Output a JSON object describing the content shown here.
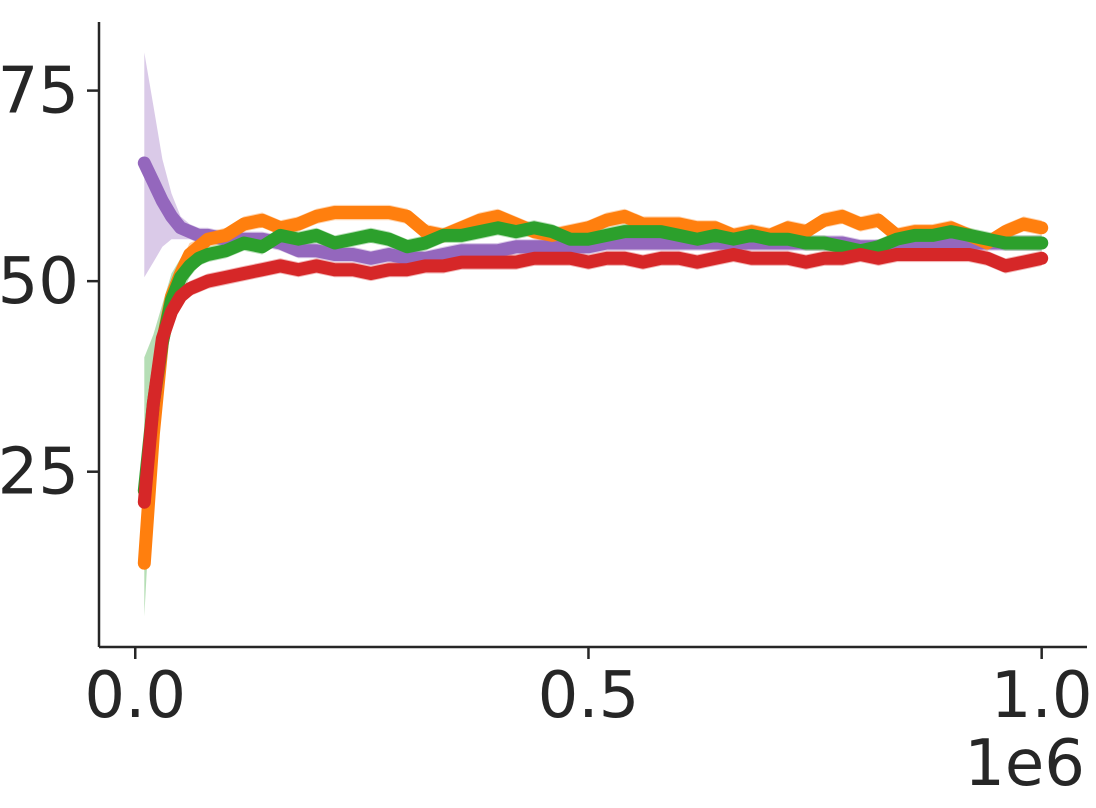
{
  "chart_data": {
    "type": "line",
    "title": "",
    "xlabel": "",
    "ylabel": "",
    "x_offset_label": "1e6",
    "xlim": [
      -0.04,
      1.05
    ],
    "ylim": [
      2,
      84
    ],
    "xticks": [
      0.0,
      0.5,
      1.0
    ],
    "xtick_labels": [
      "0.0",
      "0.5",
      "1.0"
    ],
    "yticks": [
      25,
      50,
      75
    ],
    "ytick_labels": [
      "25",
      "50",
      "75"
    ],
    "grid": false,
    "legend": "none",
    "x": [
      0.01,
      0.02,
      0.03,
      0.04,
      0.05,
      0.06,
      0.07,
      0.08,
      0.1,
      0.12,
      0.14,
      0.16,
      0.18,
      0.2,
      0.22,
      0.24,
      0.26,
      0.28,
      0.3,
      0.32,
      0.34,
      0.36,
      0.38,
      0.4,
      0.42,
      0.44,
      0.46,
      0.48,
      0.5,
      0.52,
      0.54,
      0.56,
      0.58,
      0.6,
      0.62,
      0.64,
      0.66,
      0.68,
      0.7,
      0.72,
      0.74,
      0.76,
      0.78,
      0.8,
      0.82,
      0.84,
      0.86,
      0.88,
      0.9,
      0.92,
      0.94,
      0.96,
      0.98,
      1.0
    ],
    "series": [
      {
        "color": "#9467bd",
        "values": [
          65.5,
          63,
          60.5,
          58.5,
          57,
          56.5,
          56,
          56,
          55.5,
          55.5,
          55.5,
          55,
          54,
          54,
          53.5,
          53.5,
          53,
          53.5,
          53,
          53,
          53.5,
          54,
          54,
          54,
          54.5,
          54.5,
          54.5,
          54.5,
          54.5,
          55,
          55,
          55,
          55,
          55,
          55,
          55,
          55,
          55,
          55,
          55,
          55,
          55,
          55,
          54.5,
          54.5,
          55,
          55,
          55,
          55,
          55,
          55,
          55,
          55,
          55
        ],
        "lower": [
          50.5,
          52.5,
          54.5,
          55.5,
          55.5,
          55.5,
          55,
          55,
          54.5,
          54.5,
          54.5,
          54,
          53,
          53,
          52.5,
          52.5,
          52,
          52.5,
          52,
          52,
          52.5,
          53,
          53,
          53,
          53.5,
          53.5,
          53.5,
          53.5,
          53.5,
          54,
          54,
          54,
          54,
          54,
          54,
          54,
          54,
          54,
          54,
          54,
          54,
          54,
          54,
          53.5,
          53.5,
          54,
          54,
          54,
          54,
          54,
          54,
          54,
          54,
          54
        ],
        "upper": [
          80,
          73,
          66,
          61.5,
          58.5,
          57.5,
          57,
          57,
          56.5,
          56.5,
          56.5,
          56,
          55,
          55,
          54.5,
          54.5,
          54,
          54.5,
          54,
          54,
          54.5,
          55,
          55,
          55,
          55.5,
          55.5,
          55.5,
          55.5,
          55.5,
          56,
          56,
          56,
          56,
          56,
          56,
          56,
          56,
          56,
          56,
          56,
          56,
          56,
          56,
          55.5,
          55.5,
          56,
          56,
          56,
          56,
          56,
          56,
          56,
          56,
          56
        ]
      },
      {
        "color": "#ff7f0e",
        "values": [
          13,
          30,
          42,
          48,
          51,
          53.5,
          54.5,
          55.5,
          56,
          57.5,
          58,
          57,
          57.5,
          58.5,
          59,
          59,
          59,
          59,
          58.5,
          56.5,
          56,
          57,
          58,
          58.5,
          57.5,
          56.5,
          56,
          56.5,
          57,
          58,
          58.5,
          57.5,
          57.5,
          57.5,
          57,
          57,
          56,
          56.5,
          56,
          57,
          56.5,
          58,
          58.5,
          57.5,
          58,
          56,
          56.5,
          56.5,
          57,
          56,
          55,
          56.5,
          57.5,
          57
        ],
        "lower": [
          12,
          28,
          40.5,
          46.5,
          49.5,
          52,
          53.5,
          54.5,
          55,
          56.5,
          57,
          56,
          56.5,
          57.5,
          58,
          58,
          58,
          58,
          57.5,
          55.5,
          55,
          56,
          57,
          57.5,
          56.5,
          55.5,
          55,
          55.5,
          56,
          57,
          57.5,
          56.5,
          56.5,
          56.5,
          56,
          56,
          55,
          55.5,
          55,
          56,
          55.5,
          57,
          57.5,
          56.5,
          57,
          55,
          55.5,
          55.5,
          56,
          55,
          54,
          55.5,
          56.5,
          56
        ],
        "upper": [
          14,
          32,
          43.5,
          49.5,
          52.5,
          55,
          55.5,
          56.5,
          57,
          58.5,
          59,
          58,
          58.5,
          59.5,
          60,
          60,
          60,
          60,
          59.5,
          57.5,
          57,
          58,
          59,
          59.5,
          58.5,
          57.5,
          57,
          57.5,
          58,
          59,
          59.5,
          58.5,
          58.5,
          58.5,
          58,
          58,
          57,
          57.5,
          57,
          58,
          57.5,
          59,
          59.5,
          58.5,
          59,
          57,
          57.5,
          57.5,
          58,
          57,
          56,
          57.5,
          58.5,
          58
        ]
      },
      {
        "color": "#2ca02c",
        "values": [
          22.5,
          34,
          42,
          47.5,
          50.5,
          52,
          53,
          53.5,
          54,
          55,
          54.5,
          56,
          55.5,
          56,
          55,
          55.5,
          56,
          55.5,
          54.5,
          55,
          56,
          56,
          56.5,
          57,
          56.5,
          57,
          56.5,
          55.5,
          55.5,
          56,
          56.5,
          56.5,
          56.5,
          56,
          55.5,
          56,
          55.5,
          56,
          55.5,
          55.5,
          55,
          55,
          54.5,
          54,
          54.5,
          55.5,
          56,
          56,
          56.5,
          56,
          55.5,
          55,
          55,
          55
        ],
        "lower": [
          6,
          28,
          37,
          44,
          48,
          50.5,
          52,
          52.5,
          53,
          54,
          53.5,
          55,
          54.5,
          55,
          54,
          54.5,
          55,
          54.5,
          53.5,
          54,
          55,
          55,
          55.5,
          56,
          55.5,
          56,
          55.5,
          54.5,
          54.5,
          55,
          55.5,
          55.5,
          55.5,
          55,
          54.5,
          55,
          54.5,
          55,
          54.5,
          54.5,
          54,
          54,
          53.5,
          53,
          53.5,
          54.5,
          55,
          55,
          55.5,
          55,
          54.5,
          54,
          54,
          54
        ],
        "upper": [
          40,
          43,
          47,
          51,
          53,
          54,
          54.5,
          54.5,
          55,
          56,
          55.5,
          57,
          56.5,
          57,
          56,
          56.5,
          57,
          56.5,
          55.5,
          56,
          57,
          57,
          57.5,
          58,
          57.5,
          58,
          57.5,
          56.5,
          56.5,
          57,
          57.5,
          57.5,
          57.5,
          57,
          56.5,
          57,
          56.5,
          57,
          56.5,
          56.5,
          56,
          56,
          55.5,
          55,
          55.5,
          56.5,
          57,
          57,
          57.5,
          57,
          56.5,
          56,
          56,
          56
        ]
      },
      {
        "color": "#d62728",
        "values": [
          21,
          34,
          42.5,
          46,
          48,
          49,
          49.5,
          50,
          50.5,
          51,
          51.5,
          52,
          51.5,
          52,
          51.5,
          51.5,
          51,
          51.5,
          51.5,
          52,
          52,
          52.5,
          52.5,
          52.5,
          52.5,
          53,
          53,
          53,
          52.5,
          53,
          53,
          52.5,
          53,
          53,
          52.5,
          53,
          53.5,
          53,
          53,
          53,
          52.5,
          53,
          53,
          53.5,
          53,
          53.5,
          53.5,
          53.5,
          53.5,
          53.5,
          53,
          52,
          52.5,
          53
        ],
        "lower": [
          20,
          33,
          41.5,
          45,
          47,
          48,
          48.5,
          49,
          49.5,
          50,
          50.5,
          51,
          50.5,
          51,
          50.5,
          50.5,
          50,
          50.5,
          50.5,
          51,
          51,
          51.5,
          51.5,
          51.5,
          51.5,
          52,
          52,
          52,
          51.5,
          52,
          52,
          51.5,
          52,
          52,
          51.5,
          52,
          52.5,
          52,
          52,
          52,
          51.5,
          52,
          52,
          52.5,
          52,
          52.5,
          52.5,
          52.5,
          52.5,
          52.5,
          52,
          51,
          51.5,
          52
        ],
        "upper": [
          22,
          35,
          43.5,
          47,
          49,
          50,
          50.5,
          51,
          51.5,
          52,
          52.5,
          53,
          52.5,
          53,
          52.5,
          52.5,
          52,
          52.5,
          52.5,
          53,
          53,
          53.5,
          53.5,
          53.5,
          53.5,
          54,
          54,
          54,
          53.5,
          54,
          54,
          53.5,
          54,
          54,
          53.5,
          54,
          54.5,
          54,
          54,
          54,
          53.5,
          54,
          54,
          54.5,
          54,
          54.5,
          54.5,
          54.5,
          54.5,
          54.5,
          54,
          53,
          53.5,
          54
        ]
      }
    ]
  }
}
